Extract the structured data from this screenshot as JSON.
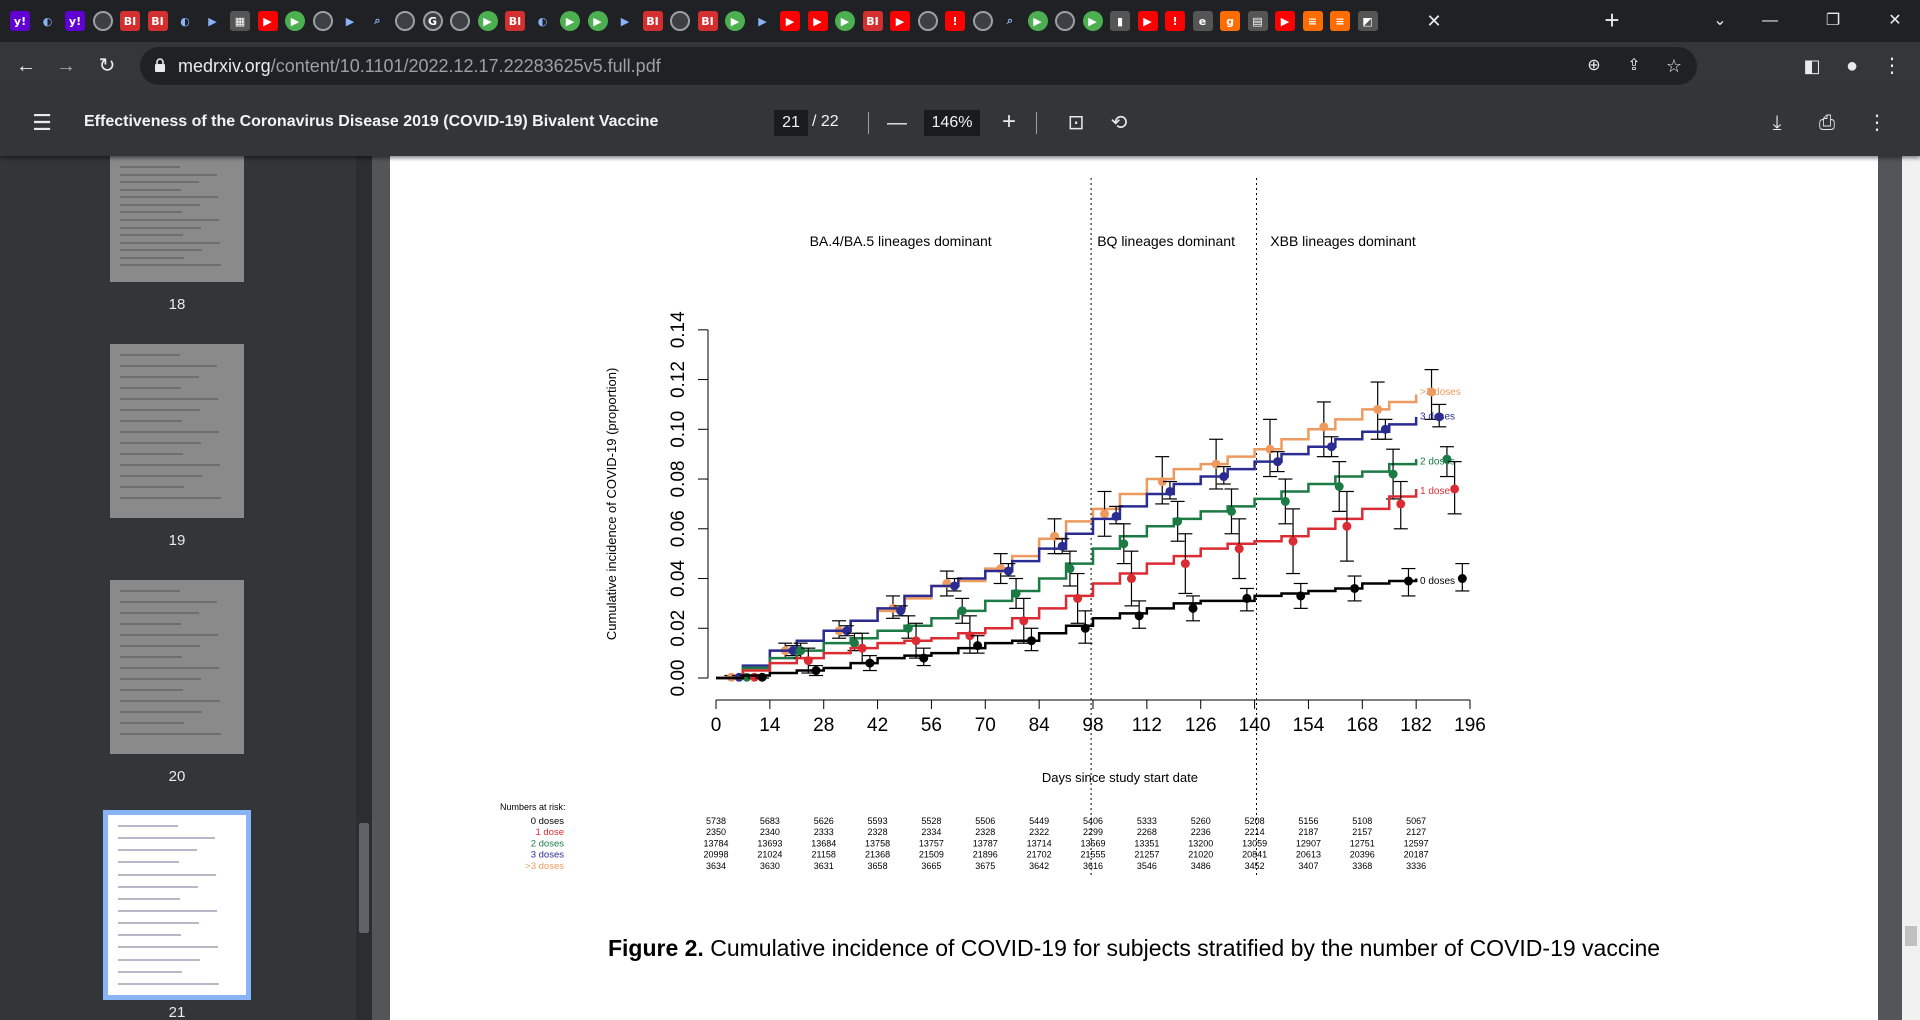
{
  "browser": {
    "tab_favicons": [
      "y!",
      "shield",
      "y!",
      "globe",
      "BI",
      "BI",
      "shield",
      "arrow",
      "qr",
      "youtube",
      "play",
      "globe",
      "arrow",
      "search",
      "globe",
      "G",
      "globe",
      "play",
      "BI",
      "shield",
      "play",
      "play",
      "arrow",
      "BI",
      "globe",
      "BI",
      "play",
      "arrow",
      "youtube",
      "youtube",
      "play",
      "BI",
      "youtube",
      "globe",
      "pin",
      "globe",
      "search",
      "play",
      "globe",
      "play",
      "bar",
      "youtube",
      "pin",
      "e",
      "g",
      "doc",
      "youtube",
      "bars",
      "bars",
      "photo"
    ],
    "url_host": "medrxiv.org",
    "url_path": "/content/10.1101/2022.12.17.22283625v5.full.pdf"
  },
  "pdf_viewer": {
    "title": "Effectiveness of the Coronavirus Disease 2019 (COVID-19) Bivalent Vaccine",
    "current_page": "21",
    "total_pages": "/ 22",
    "zoom": "146%"
  },
  "thumbnails": [
    {
      "label": "18"
    },
    {
      "label": "19"
    },
    {
      "label": "20"
    },
    {
      "label": "21"
    }
  ],
  "figure": {
    "caption_bold": "Figure 2.",
    "caption_text": " Cumulative incidence of COVID-19 for subjects stratified by the number of COVID-19 vaccine"
  },
  "chart_data": {
    "type": "line",
    "title": "",
    "xlabel": "Days since study start date",
    "ylabel": "Cumulative incidence of COVID-19 (proportion)",
    "xlim": [
      0,
      196
    ],
    "ylim": [
      0,
      0.14
    ],
    "xticks": [
      0,
      14,
      28,
      42,
      56,
      70,
      84,
      98,
      112,
      126,
      140,
      154,
      168,
      182,
      196
    ],
    "yticks": [
      "0.00",
      "0.02",
      "0.04",
      "0.06",
      "0.08",
      "0.10",
      "0.12",
      "0.14"
    ],
    "period_dividers": [
      97.5,
      140.5
    ],
    "period_labels": [
      {
        "text": "BA.4/BA.5 lineages dominant",
        "x": 48
      },
      {
        "text": "BQ lineages dominant",
        "x": 117
      },
      {
        "text": "XBB lineages dominant",
        "x": 163
      }
    ],
    "series": [
      {
        "name": ">3 doses",
        "color": "#ee9a5f",
        "x": [
          0,
          7,
          14,
          21,
          28,
          35,
          42,
          49,
          56,
          63,
          70,
          77,
          84,
          91,
          98,
          105,
          112,
          119,
          126,
          133,
          140,
          147,
          154,
          161,
          168,
          175,
          182
        ],
        "y": [
          0,
          0.004,
          0.011,
          0.015,
          0.019,
          0.023,
          0.027,
          0.032,
          0.037,
          0.039,
          0.044,
          0.049,
          0.056,
          0.063,
          0.068,
          0.074,
          0.08,
          0.084,
          0.086,
          0.089,
          0.092,
          0.096,
          0.1,
          0.104,
          0.108,
          0.111,
          0.114
        ],
        "markers": [
          [
            4,
            0.0003
          ],
          [
            18,
            0.011
          ],
          [
            32,
            0.019
          ],
          [
            46,
            0.028
          ],
          [
            60,
            0.038
          ],
          [
            74,
            0.044
          ],
          [
            88,
            0.057
          ],
          [
            101,
            0.066
          ],
          [
            116,
            0.079
          ],
          [
            130,
            0.086
          ],
          [
            144,
            0.092
          ],
          [
            158,
            0.101
          ],
          [
            172,
            0.108
          ],
          [
            186,
            0.115
          ]
        ],
        "ci": [
          [
            0.0,
            0.001
          ],
          [
            0.008,
            0.014
          ],
          [
            0.016,
            0.023
          ],
          [
            0.024,
            0.033
          ],
          [
            0.033,
            0.043
          ],
          [
            0.038,
            0.05
          ],
          [
            0.05,
            0.064
          ],
          [
            0.057,
            0.075
          ],
          [
            0.07,
            0.089
          ],
          [
            0.076,
            0.096
          ],
          [
            0.081,
            0.104
          ],
          [
            0.089,
            0.111
          ],
          [
            0.096,
            0.119
          ],
          [
            0.104,
            0.124
          ]
        ]
      },
      {
        "name": "3 doses",
        "color": "#2b2c92",
        "x": [
          0,
          7,
          14,
          21,
          28,
          35,
          42,
          49,
          56,
          63,
          70,
          77,
          84,
          91,
          98,
          105,
          112,
          119,
          126,
          133,
          140,
          147,
          154,
          161,
          168,
          175,
          182
        ],
        "y": [
          0,
          0.005,
          0.011,
          0.015,
          0.019,
          0.023,
          0.028,
          0.033,
          0.037,
          0.04,
          0.043,
          0.047,
          0.052,
          0.058,
          0.064,
          0.069,
          0.074,
          0.078,
          0.081,
          0.084,
          0.087,
          0.09,
          0.093,
          0.096,
          0.099,
          0.102,
          0.105
        ],
        "markers": [
          [
            6,
            0.0003
          ],
          [
            20,
            0.011
          ],
          [
            34,
            0.019
          ],
          [
            48,
            0.027
          ],
          [
            62,
            0.037
          ],
          [
            76,
            0.043
          ],
          [
            90,
            0.053
          ],
          [
            104,
            0.065
          ],
          [
            118,
            0.075
          ],
          [
            132,
            0.081
          ],
          [
            146,
            0.087
          ],
          [
            160,
            0.093
          ],
          [
            174,
            0.1
          ],
          [
            188,
            0.105
          ]
        ],
        "ci": [
          [
            0.0,
            0.001
          ],
          [
            0.009,
            0.013
          ],
          [
            0.017,
            0.021
          ],
          [
            0.025,
            0.029
          ],
          [
            0.035,
            0.04
          ],
          [
            0.041,
            0.046
          ],
          [
            0.05,
            0.056
          ],
          [
            0.062,
            0.069
          ],
          [
            0.072,
            0.079
          ],
          [
            0.078,
            0.085
          ],
          [
            0.083,
            0.091
          ],
          [
            0.089,
            0.097
          ],
          [
            0.096,
            0.104
          ],
          [
            0.101,
            0.11
          ]
        ]
      },
      {
        "name": "2 doses",
        "color": "#1c7a44",
        "x": [
          0,
          7,
          14,
          21,
          28,
          35,
          42,
          49,
          56,
          63,
          70,
          77,
          84,
          91,
          98,
          105,
          112,
          119,
          126,
          133,
          140,
          147,
          154,
          161,
          168,
          175,
          182
        ],
        "y": [
          0,
          0.004,
          0.008,
          0.011,
          0.014,
          0.016,
          0.019,
          0.021,
          0.024,
          0.027,
          0.031,
          0.035,
          0.04,
          0.046,
          0.052,
          0.057,
          0.061,
          0.064,
          0.067,
          0.069,
          0.072,
          0.075,
          0.078,
          0.081,
          0.083,
          0.086,
          0.088
        ],
        "markers": [
          [
            8,
            0.0003
          ],
          [
            22,
            0.011
          ],
          [
            36,
            0.014
          ],
          [
            50,
            0.02
          ],
          [
            64,
            0.027
          ],
          [
            78,
            0.034
          ],
          [
            92,
            0.044
          ],
          [
            106,
            0.054
          ],
          [
            120,
            0.063
          ],
          [
            134,
            0.067
          ],
          [
            148,
            0.071
          ],
          [
            162,
            0.077
          ],
          [
            176,
            0.082
          ],
          [
            190,
            0.088
          ]
        ],
        "ci": [
          [
            0.0,
            0.001
          ],
          [
            0.008,
            0.014
          ],
          [
            0.011,
            0.018
          ],
          [
            0.016,
            0.025
          ],
          [
            0.022,
            0.032
          ],
          [
            0.028,
            0.04
          ],
          [
            0.037,
            0.051
          ],
          [
            0.046,
            0.062
          ],
          [
            0.055,
            0.071
          ],
          [
            0.058,
            0.076
          ],
          [
            0.062,
            0.08
          ],
          [
            0.067,
            0.087
          ],
          [
            0.072,
            0.092
          ],
          [
            0.081,
            0.093
          ]
        ]
      },
      {
        "name": "1 dose",
        "color": "#dc2c33",
        "x": [
          0,
          7,
          14,
          21,
          28,
          35,
          42,
          49,
          56,
          63,
          70,
          77,
          84,
          91,
          98,
          105,
          112,
          119,
          126,
          133,
          140,
          147,
          154,
          161,
          168,
          175,
          182
        ],
        "y": [
          0,
          0.003,
          0.006,
          0.008,
          0.01,
          0.012,
          0.014,
          0.015,
          0.016,
          0.018,
          0.02,
          0.024,
          0.028,
          0.033,
          0.038,
          0.042,
          0.046,
          0.049,
          0.052,
          0.054,
          0.055,
          0.057,
          0.06,
          0.064,
          0.068,
          0.073,
          0.076
        ],
        "markers": [
          [
            10,
            0.0003
          ],
          [
            24,
            0.007
          ],
          [
            38,
            0.012
          ],
          [
            52,
            0.015
          ],
          [
            66,
            0.017
          ],
          [
            80,
            0.023
          ],
          [
            94,
            0.032
          ],
          [
            108,
            0.04
          ],
          [
            122,
            0.046
          ],
          [
            136,
            0.052
          ],
          [
            150,
            0.055
          ],
          [
            164,
            0.061
          ],
          [
            178,
            0.07
          ],
          [
            192,
            0.076
          ]
        ],
        "ci": [
          [
            0.0,
            0.001
          ],
          [
            0.002,
            0.012
          ],
          [
            0.006,
            0.018
          ],
          [
            0.008,
            0.022
          ],
          [
            0.01,
            0.025
          ],
          [
            0.014,
            0.032
          ],
          [
            0.022,
            0.042
          ],
          [
            0.029,
            0.051
          ],
          [
            0.034,
            0.058
          ],
          [
            0.04,
            0.064
          ],
          [
            0.042,
            0.068
          ],
          [
            0.047,
            0.075
          ],
          [
            0.06,
            0.079
          ],
          [
            0.066,
            0.087
          ]
        ]
      },
      {
        "name": "0 doses",
        "color": "#000000",
        "x": [
          0,
          7,
          14,
          21,
          28,
          35,
          42,
          49,
          56,
          63,
          70,
          77,
          84,
          91,
          98,
          105,
          112,
          119,
          126,
          133,
          140,
          147,
          154,
          161,
          168,
          175,
          182
        ],
        "y": [
          0,
          0.001,
          0.002,
          0.003,
          0.004,
          0.006,
          0.008,
          0.009,
          0.01,
          0.012,
          0.014,
          0.015,
          0.018,
          0.021,
          0.024,
          0.026,
          0.028,
          0.03,
          0.031,
          0.031,
          0.033,
          0.034,
          0.035,
          0.036,
          0.038,
          0.039,
          0.04
        ],
        "markers": [
          [
            12,
            0.0003
          ],
          [
            26,
            0.003
          ],
          [
            40,
            0.006
          ],
          [
            54,
            0.008
          ],
          [
            68,
            0.013
          ],
          [
            82,
            0.015
          ],
          [
            96,
            0.02
          ],
          [
            110,
            0.025
          ],
          [
            124,
            0.028
          ],
          [
            138,
            0.032
          ],
          [
            152,
            0.033
          ],
          [
            166,
            0.036
          ],
          [
            180,
            0.039
          ],
          [
            194,
            0.04
          ]
        ],
        "ci": [
          [
            0.0,
            0.001
          ],
          [
            0.001,
            0.005
          ],
          [
            0.003,
            0.009
          ],
          [
            0.005,
            0.012
          ],
          [
            0.01,
            0.017
          ],
          [
            0.011,
            0.02
          ],
          [
            0.014,
            0.027
          ],
          [
            0.02,
            0.031
          ],
          [
            0.023,
            0.033
          ],
          [
            0.027,
            0.036
          ],
          [
            0.028,
            0.038
          ],
          [
            0.031,
            0.041
          ],
          [
            0.033,
            0.044
          ],
          [
            0.035,
            0.046
          ]
        ]
      }
    ],
    "risk_table": {
      "title": "Numbers at risk:",
      "times": [
        0,
        14,
        28,
        42,
        56,
        70,
        84,
        98,
        112,
        126,
        140,
        154,
        168,
        182
      ],
      "rows": [
        {
          "label": "0 doses",
          "color": "#000000",
          "values": [
            "5738",
            "5683",
            "5626",
            "5593",
            "5528",
            "5506",
            "5449",
            "5406",
            "5333",
            "5260",
            "5208",
            "5156",
            "5108",
            "5067"
          ]
        },
        {
          "label": "1 dose",
          "color": "#dc2c33",
          "values": [
            "2350",
            "2340",
            "2333",
            "2328",
            "2334",
            "2328",
            "2322",
            "2299",
            "2268",
            "2236",
            "2214",
            "2187",
            "2157",
            "2127"
          ]
        },
        {
          "label": "2 doses",
          "color": "#1c7a44",
          "values": [
            "13784",
            "13693",
            "13684",
            "13758",
            "13757",
            "13787",
            "13714",
            "13569",
            "13351",
            "13200",
            "13059",
            "12907",
            "12751",
            "12597"
          ]
        },
        {
          "label": "3 doses",
          "color": "#2b2c92",
          "values": [
            "20998",
            "21024",
            "21158",
            "21368",
            "21509",
            "21896",
            "21702",
            "21555",
            "21257",
            "21020",
            "20841",
            "20613",
            "20396",
            "20187"
          ]
        },
        {
          "label": ">3 doses",
          "color": "#ee9a5f",
          "values": [
            "3634",
            "3630",
            "3631",
            "3658",
            "3665",
            "3675",
            "3642",
            "3616",
            "3546",
            "3486",
            "3452",
            "3407",
            "3368",
            "3336"
          ]
        }
      ]
    }
  }
}
